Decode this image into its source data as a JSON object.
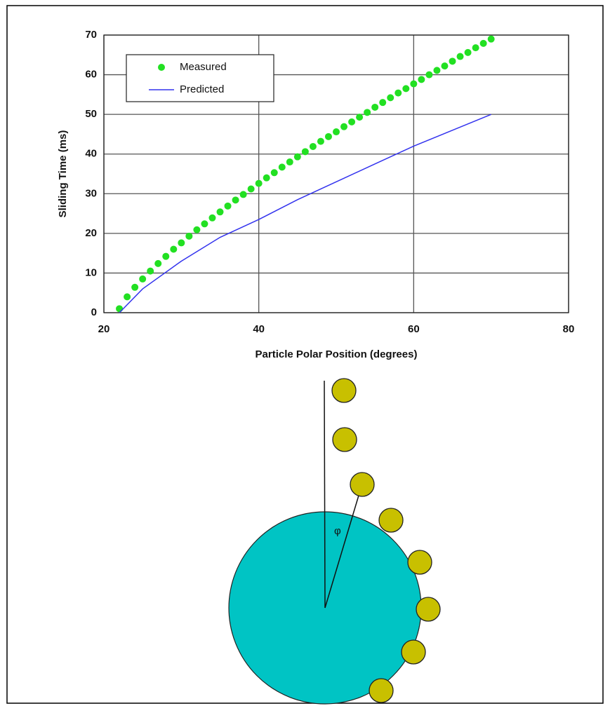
{
  "chart_data": {
    "type": "line",
    "x_label": "Particle Polar Position (degrees)",
    "y_label": "Sliding Time (ms)",
    "xlim": [
      20,
      80
    ],
    "xticks": [
      20,
      40,
      60,
      80
    ],
    "ylim": [
      0,
      70
    ],
    "yticks": [
      0,
      10,
      20,
      30,
      40,
      50,
      60,
      70
    ],
    "grid": true,
    "legend": "upper left",
    "series": [
      {
        "name": "Measured",
        "color": "#22e022",
        "mode": "markers",
        "x": [
          22,
          23,
          24,
          25,
          26,
          27,
          28,
          29,
          30,
          31,
          32,
          33,
          34,
          35,
          36,
          37,
          38,
          39,
          40,
          41,
          42,
          43,
          44,
          45,
          46,
          47,
          48,
          49,
          50,
          51,
          52,
          53,
          54,
          55,
          56,
          57,
          58,
          59,
          60,
          61,
          62,
          63,
          64,
          65,
          66,
          67,
          68,
          69,
          70
        ],
        "values": [
          1.0,
          4.0,
          6.4,
          8.5,
          10.5,
          12.4,
          14.2,
          16.0,
          17.6,
          19.3,
          20.9,
          22.4,
          23.9,
          25.4,
          26.9,
          28.4,
          29.8,
          31.2,
          32.6,
          34.0,
          35.3,
          36.7,
          38.0,
          39.3,
          40.6,
          41.9,
          43.2,
          44.4,
          45.6,
          46.9,
          48.1,
          49.3,
          50.5,
          51.8,
          53.0,
          54.2,
          55.4,
          56.5,
          57.7,
          58.8,
          60.0,
          61.1,
          62.2,
          63.4,
          64.6,
          65.6,
          66.8,
          67.9,
          69.0
        ]
      },
      {
        "name": "Predicted",
        "color": "#3333ee",
        "mode": "line",
        "x": [
          22,
          25,
          30,
          35,
          40,
          45,
          50,
          55,
          60,
          65,
          70
        ],
        "values": [
          0,
          6,
          13,
          19,
          23.5,
          28.5,
          33,
          37.5,
          42,
          46,
          50
        ]
      }
    ]
  },
  "diagram": {
    "angle_label": "φ"
  }
}
